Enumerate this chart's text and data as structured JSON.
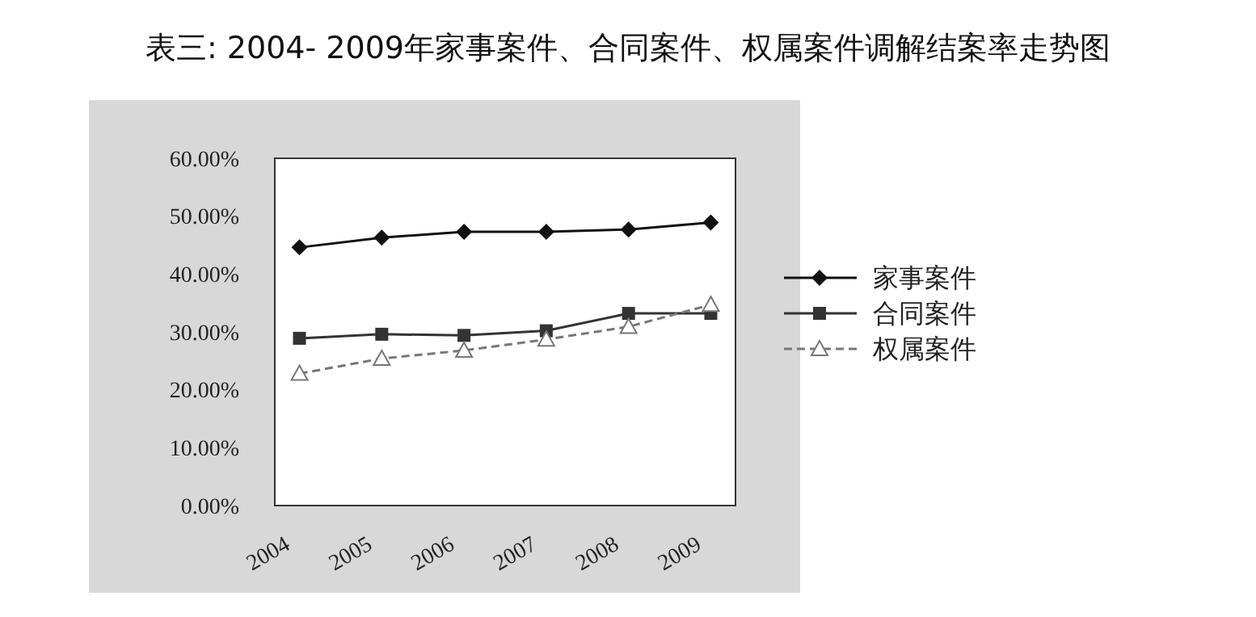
{
  "chart_data": {
    "type": "line",
    "title": "表三: 2004- 2009年家事案件、合同案件、权属案件调解结案率走势图",
    "categories": [
      "2004",
      "2005",
      "2006",
      "2007",
      "2008",
      "2009"
    ],
    "series": [
      {
        "name": "家事案件",
        "color": "#111111",
        "marker": "diamond",
        "line_style": "solid",
        "values": [
          44.6,
          46.3,
          47.3,
          47.3,
          47.7,
          48.9
        ]
      },
      {
        "name": "合同案件",
        "color": "#333333",
        "marker": "square",
        "line_style": "solid",
        "values": [
          28.9,
          29.6,
          29.4,
          30.2,
          33.2,
          33.2
        ]
      },
      {
        "name": "权属案件",
        "color": "#777777",
        "marker": "triangle",
        "line_style": "dashed",
        "values": [
          22.8,
          25.4,
          26.8,
          28.7,
          30.9,
          34.7
        ]
      }
    ],
    "ylim": [
      0,
      60
    ],
    "yticks": [
      {
        "value": 0,
        "label": "0.00%"
      },
      {
        "value": 10,
        "label": "10.00%"
      },
      {
        "value": 20,
        "label": "20.00%"
      },
      {
        "value": 30,
        "label": "30.00%"
      },
      {
        "value": 40,
        "label": "40.00%"
      },
      {
        "value": 50,
        "label": "50.00%"
      },
      {
        "value": 60,
        "label": "60.00%"
      }
    ],
    "grid": false,
    "legend": "right"
  }
}
